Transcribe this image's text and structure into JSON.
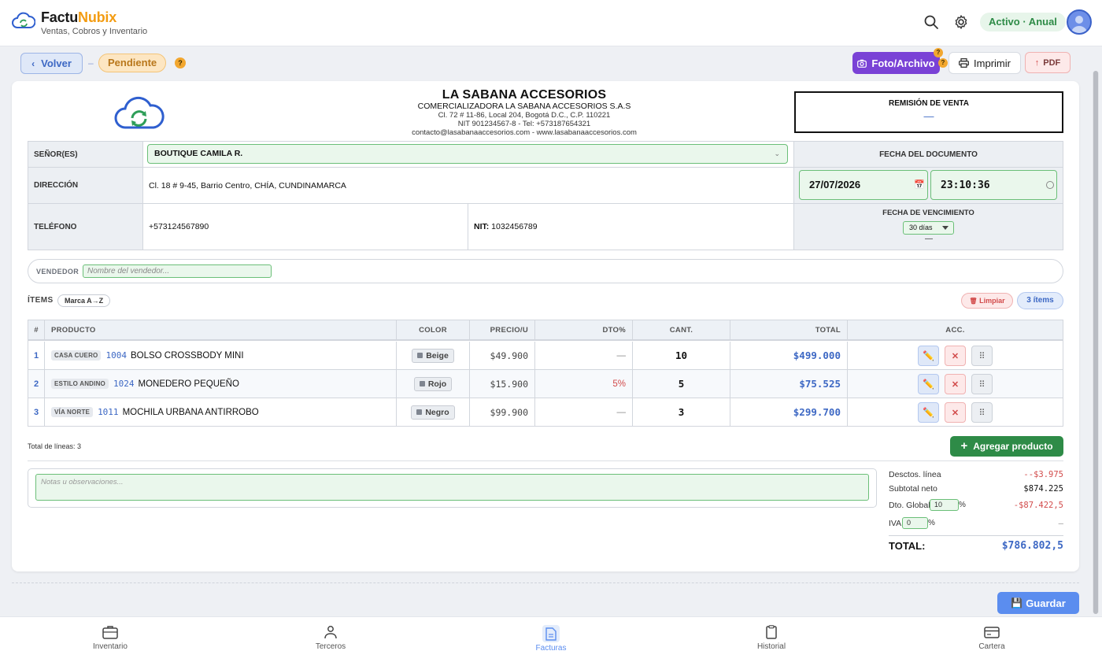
{
  "header": {
    "brand_prefix": "Factu",
    "brand_suffix": "Nubix",
    "subtitle": "Ventas, Cobros y Inventario",
    "plan_badge": "Activo · Anual"
  },
  "toolbar": {
    "back_label": "Volver",
    "separator": "–",
    "status": "Pendiente",
    "help": "?",
    "photo_label": "Foto/Archivo",
    "print_label": "Imprimir",
    "pdf_label": "PDF"
  },
  "company": {
    "name": "LA SABANA ACCESORIOS",
    "legal_name": "COMERCIALIZADORA LA SABANA ACCESORIOS S.A.S",
    "address": "Cl. 72 # 11-86, Local 204, Bogotá D.C., C.P. 110221",
    "nit_phone": "NIT 901234567-8 - Tel: +573187654321",
    "contact": "contacto@lasabanaaccesorios.com - www.lasabanaaccesorios.com"
  },
  "document": {
    "type": "REMISIÓN DE VENTA",
    "number": "—"
  },
  "client": {
    "label_senores": "SEÑOR(ES)",
    "name": "BOUTIQUE CAMILA R.",
    "label_direccion": "DIRECCIÓN",
    "address": "Cl. 18 # 9-45, Barrio Centro, CHÍA, CUNDINAMARCA",
    "label_telefono": "TELÉFONO",
    "phone": "+573124567890",
    "nit_label": "NIT:",
    "nit": "1032456789",
    "label_fecha_doc": "FECHA DEL DOCUMENTO",
    "date": "27/07/2026",
    "time": "23:10:36",
    "label_vencimiento": "FECHA DE VENCIMIENTO",
    "term": "30 días",
    "due_date": "—"
  },
  "vendor": {
    "label": "VENDEDOR",
    "placeholder": "Nombre del vendedor..."
  },
  "items_section": {
    "title": "ÍTEMS",
    "sort": "Marca A→Z",
    "clear": "Limpiar",
    "count": "3 ítems"
  },
  "table": {
    "headers": [
      "#",
      "PRODUCTO",
      "COLOR",
      "PRECIO/U",
      "DTO%",
      "CANT.",
      "TOTAL",
      "ACC."
    ],
    "rows": [
      {
        "n": "1",
        "brand": "CASA CUERO",
        "code": "1004",
        "name": "BOLSO CROSSBODY MINI",
        "color": "Beige",
        "price": "$49.900",
        "disc": "—",
        "qty": "10",
        "total": "$499.000"
      },
      {
        "n": "2",
        "brand": "ESTILO ANDINO",
        "code": "1024",
        "name": "MONEDERO PEQUEÑO",
        "color": "Rojo",
        "price": "$15.900",
        "disc": "5%",
        "qty": "5",
        "total": "$75.525"
      },
      {
        "n": "3",
        "brand": "VÍA NORTE",
        "code": "1011",
        "name": "MOCHILA URBANA ANTIRROBO",
        "color": "Negro",
        "price": "$99.900",
        "disc": "—",
        "qty": "3",
        "total": "$299.700"
      }
    ]
  },
  "footer_table": {
    "total_lines": "Total de líneas: 3",
    "add_product": "Agregar producto"
  },
  "notes": {
    "placeholder": "Notas u observaciones..."
  },
  "summary": {
    "line_disc_label": "Desctos. línea",
    "line_disc_value": "--$3.975",
    "subtotal_label": "Subtotal neto",
    "subtotal_value": "$874.225",
    "global_disc_label": "Dto. Global",
    "global_disc_pct": "10",
    "global_disc_value": "-$87.422,5",
    "iva_label": "IVA",
    "iva_pct": "0",
    "iva_value": "—",
    "pct_sign": "%",
    "total_label": "TOTAL:",
    "total_value": "$786.802,5"
  },
  "save_label": "Guardar",
  "nav": {
    "inventario": "Inventario",
    "terceros": "Terceros",
    "facturas": "Facturas",
    "historial": "Historial",
    "cartera": "Cartera"
  },
  "colors": {
    "accent_blue": "#5b8def",
    "brand_orange": "#f39c12",
    "success_green": "#2e8b47",
    "danger_red": "#d24b4b",
    "purple": "#7a42d6"
  }
}
